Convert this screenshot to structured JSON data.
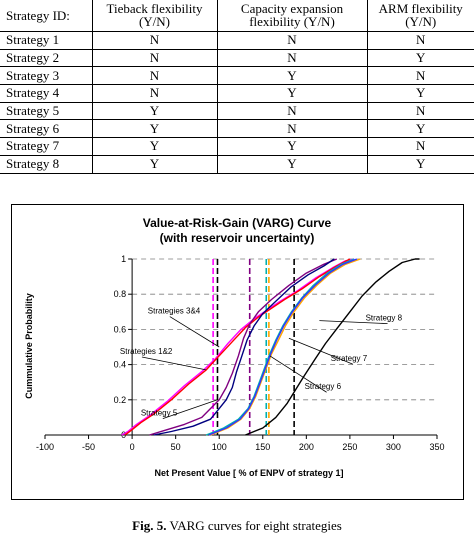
{
  "table": {
    "headers": [
      "Strategy ID:",
      "Tieback flexibility (Y/N)",
      "Capacity expansion flexibility (Y/N)",
      "ARM flexibility (Y/N)"
    ],
    "rows": [
      [
        "Strategy 1",
        "N",
        "N",
        "N"
      ],
      [
        "Strategy 2",
        "N",
        "N",
        "Y"
      ],
      [
        "Strategy 3",
        "N",
        "Y",
        "N"
      ],
      [
        "Strategy 4",
        "N",
        "Y",
        "Y"
      ],
      [
        "Strategy 5",
        "Y",
        "N",
        "N"
      ],
      [
        "Strategy 6",
        "Y",
        "N",
        "Y"
      ],
      [
        "Strategy 7",
        "Y",
        "Y",
        "N"
      ],
      [
        "Strategy 8",
        "Y",
        "Y",
        "Y"
      ]
    ]
  },
  "caption": {
    "label": "Fig. 5.",
    "text": " VARG curves for eight strategies"
  },
  "chart_data": {
    "type": "line",
    "title": [
      "Value-at-Risk-Gain (VARG) Curve",
      "(with reservoir uncertainty)"
    ],
    "xlabel": "Net Present Value [ % of ENPV of strategy 1]",
    "ylabel": "Cummulative Probability",
    "xlim": [
      -100,
      350
    ],
    "ylim": [
      0,
      1
    ],
    "xticks": [
      -100,
      -50,
      0,
      50,
      100,
      150,
      200,
      250,
      300,
      350
    ],
    "yticks": [
      0,
      0.2,
      0.4,
      0.6,
      0.8,
      1
    ],
    "grid": "horizontal dashed",
    "series": [
      {
        "color": "#ff00ff",
        "points": [
          [
            -12,
            0
          ],
          [
            -5,
            0.02
          ],
          [
            5,
            0.06
          ],
          [
            20,
            0.11
          ],
          [
            40,
            0.19
          ],
          [
            60,
            0.28
          ],
          [
            80,
            0.36
          ],
          [
            95,
            0.43
          ],
          [
            110,
            0.52
          ],
          [
            125,
            0.6
          ],
          [
            140,
            0.66
          ],
          [
            155,
            0.71
          ],
          [
            170,
            0.76
          ],
          [
            190,
            0.82
          ],
          [
            210,
            0.89
          ],
          [
            230,
            0.95
          ],
          [
            245,
            0.99
          ],
          [
            255,
            1
          ]
        ]
      },
      {
        "color": "#ff0000",
        "points": [
          [
            -8,
            0
          ],
          [
            0,
            0.03
          ],
          [
            10,
            0.07
          ],
          [
            25,
            0.12
          ],
          [
            45,
            0.2
          ],
          [
            65,
            0.29
          ],
          [
            85,
            0.37
          ],
          [
            100,
            0.45
          ],
          [
            115,
            0.53
          ],
          [
            130,
            0.61
          ],
          [
            145,
            0.67
          ],
          [
            160,
            0.72
          ],
          [
            175,
            0.77
          ],
          [
            195,
            0.83
          ],
          [
            215,
            0.9
          ],
          [
            235,
            0.96
          ],
          [
            250,
            1
          ]
        ]
      },
      {
        "color": "#800080",
        "points": [
          [
            20,
            0
          ],
          [
            40,
            0.03
          ],
          [
            60,
            0.06
          ],
          [
            80,
            0.1
          ],
          [
            92,
            0.16
          ],
          [
            100,
            0.2
          ],
          [
            108,
            0.27
          ],
          [
            115,
            0.35
          ],
          [
            122,
            0.45
          ],
          [
            128,
            0.55
          ],
          [
            135,
            0.63
          ],
          [
            145,
            0.7
          ],
          [
            160,
            0.77
          ],
          [
            180,
            0.85
          ],
          [
            200,
            0.92
          ],
          [
            220,
            0.97
          ],
          [
            235,
            1
          ]
        ]
      },
      {
        "color": "#000080",
        "points": [
          [
            25,
            0
          ],
          [
            45,
            0.02
          ],
          [
            70,
            0.05
          ],
          [
            90,
            0.09
          ],
          [
            100,
            0.15
          ],
          [
            108,
            0.2
          ],
          [
            115,
            0.27
          ],
          [
            120,
            0.36
          ],
          [
            126,
            0.45
          ],
          [
            132,
            0.54
          ],
          [
            140,
            0.62
          ],
          [
            150,
            0.69
          ],
          [
            165,
            0.76
          ],
          [
            182,
            0.84
          ],
          [
            202,
            0.91
          ],
          [
            220,
            0.96
          ],
          [
            232,
            1
          ]
        ]
      },
      {
        "color": "#ffa500",
        "points": [
          [
            90,
            0
          ],
          [
            110,
            0.04
          ],
          [
            125,
            0.09
          ],
          [
            135,
            0.15
          ],
          [
            142,
            0.22
          ],
          [
            148,
            0.3
          ],
          [
            154,
            0.38
          ],
          [
            160,
            0.46
          ],
          [
            168,
            0.54
          ],
          [
            176,
            0.62
          ],
          [
            186,
            0.7
          ],
          [
            198,
            0.78
          ],
          [
            212,
            0.85
          ],
          [
            228,
            0.92
          ],
          [
            245,
            0.97
          ],
          [
            262,
            1
          ]
        ]
      },
      {
        "color": "#00b0b0",
        "points": [
          [
            85,
            0
          ],
          [
            105,
            0.04
          ],
          [
            122,
            0.09
          ],
          [
            133,
            0.15
          ],
          [
            140,
            0.22
          ],
          [
            146,
            0.3
          ],
          [
            152,
            0.38
          ],
          [
            158,
            0.46
          ],
          [
            165,
            0.54
          ],
          [
            173,
            0.62
          ],
          [
            183,
            0.7
          ],
          [
            195,
            0.78
          ],
          [
            208,
            0.85
          ],
          [
            224,
            0.92
          ],
          [
            240,
            0.97
          ],
          [
            255,
            1
          ]
        ]
      },
      {
        "color": "#3333ff",
        "points": [
          [
            88,
            0
          ],
          [
            108,
            0.04
          ],
          [
            124,
            0.09
          ],
          [
            134,
            0.15
          ],
          [
            141,
            0.22
          ],
          [
            147,
            0.3
          ],
          [
            153,
            0.38
          ],
          [
            159,
            0.46
          ],
          [
            166,
            0.54
          ],
          [
            174,
            0.62
          ],
          [
            184,
            0.7
          ],
          [
            196,
            0.78
          ],
          [
            210,
            0.85
          ],
          [
            226,
            0.92
          ],
          [
            242,
            0.97
          ],
          [
            258,
            1
          ]
        ]
      },
      {
        "color": "#000000",
        "points": [
          [
            130,
            0
          ],
          [
            150,
            0.04
          ],
          [
            165,
            0.1
          ],
          [
            178,
            0.18
          ],
          [
            188,
            0.26
          ],
          [
            198,
            0.34
          ],
          [
            210,
            0.43
          ],
          [
            222,
            0.52
          ],
          [
            236,
            0.61
          ],
          [
            250,
            0.7
          ],
          [
            264,
            0.79
          ],
          [
            280,
            0.87
          ],
          [
            295,
            0.93
          ],
          [
            310,
            0.98
          ],
          [
            325,
            1
          ],
          [
            330,
            1
          ]
        ]
      }
    ],
    "vlines": [
      {
        "x": 93,
        "color": "#ff00ff"
      },
      {
        "x": 98,
        "color": "#000000"
      },
      {
        "x": 135,
        "color": "#800080"
      },
      {
        "x": 154,
        "color": "#00b0b0"
      },
      {
        "x": 157,
        "color": "#ffa500"
      },
      {
        "x": 186,
        "color": "#000000"
      }
    ],
    "annotations": [
      {
        "text": "Strategies 3&4",
        "x": 18,
        "y": 0.69,
        "to": [
          100,
          0.5
        ]
      },
      {
        "text": "Strategies 1&2",
        "x": -14,
        "y": 0.46,
        "to": [
          85,
          0.37
        ]
      },
      {
        "text": "Strategy 5",
        "x": 10,
        "y": 0.11,
        "to": [
          98,
          0.2
        ]
      },
      {
        "text": "Strategy 8",
        "x": 268,
        "y": 0.65,
        "to": [
          215,
          0.65
        ]
      },
      {
        "text": "Strategy 7",
        "x": 228,
        "y": 0.42,
        "to": [
          180,
          0.55
        ]
      },
      {
        "text": "Strategy 6",
        "x": 198,
        "y": 0.26,
        "to": [
          158,
          0.45
        ]
      }
    ]
  }
}
